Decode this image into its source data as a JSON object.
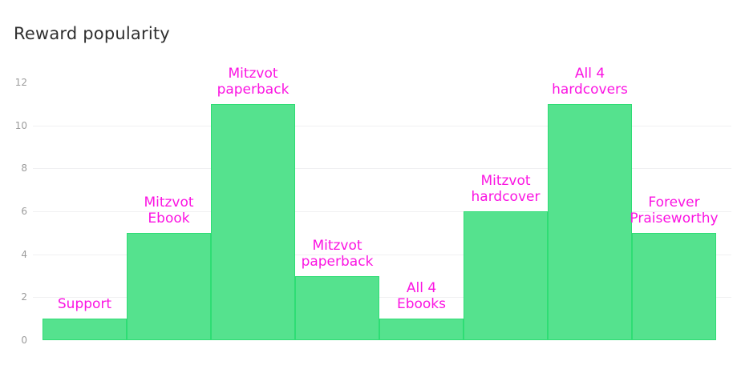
{
  "page": {
    "title": "Reward popularity"
  },
  "chart_data": {
    "type": "bar",
    "title": "Reward popularity",
    "categories": [
      "Support",
      "Mitzvot Ebook",
      "Mitzvot paperback",
      "Mitzvot paperback",
      "All 4 Ebooks",
      "Mitzvot hardcover",
      "All 4 hardcovers",
      "Forever Praiseworthy"
    ],
    "values": [
      1,
      5,
      11,
      3,
      1,
      6,
      11,
      5
    ],
    "bar_labels": [
      "Support",
      "Mitzvot\nEbook",
      "Mitzvot\npaperback",
      "Mitzvot\npaperback",
      "All 4\nEbooks",
      "Mitzvot\nhardcover",
      "All 4\nhardcovers",
      "Forever\nPraiseworthy"
    ],
    "xlabel": "",
    "ylabel": "",
    "ylim": [
      0,
      12
    ],
    "y_ticks": [
      "0",
      "2",
      "4",
      "6",
      "8",
      "10",
      "12"
    ],
    "y_tick_values": [
      0,
      2,
      4,
      6,
      8,
      10,
      12
    ],
    "gridline_values": [
      2,
      4,
      6,
      8,
      10
    ],
    "grid": true,
    "legend_position": "none",
    "colors": {
      "bar_fill": "#55e28e",
      "bar_border": "#2edd74",
      "bar_label": "#fb14e2",
      "tick_label": "#9b9b9b",
      "gridline": "#f0f0f2",
      "title": "#2f2f2f",
      "background": "#ffffff"
    }
  }
}
